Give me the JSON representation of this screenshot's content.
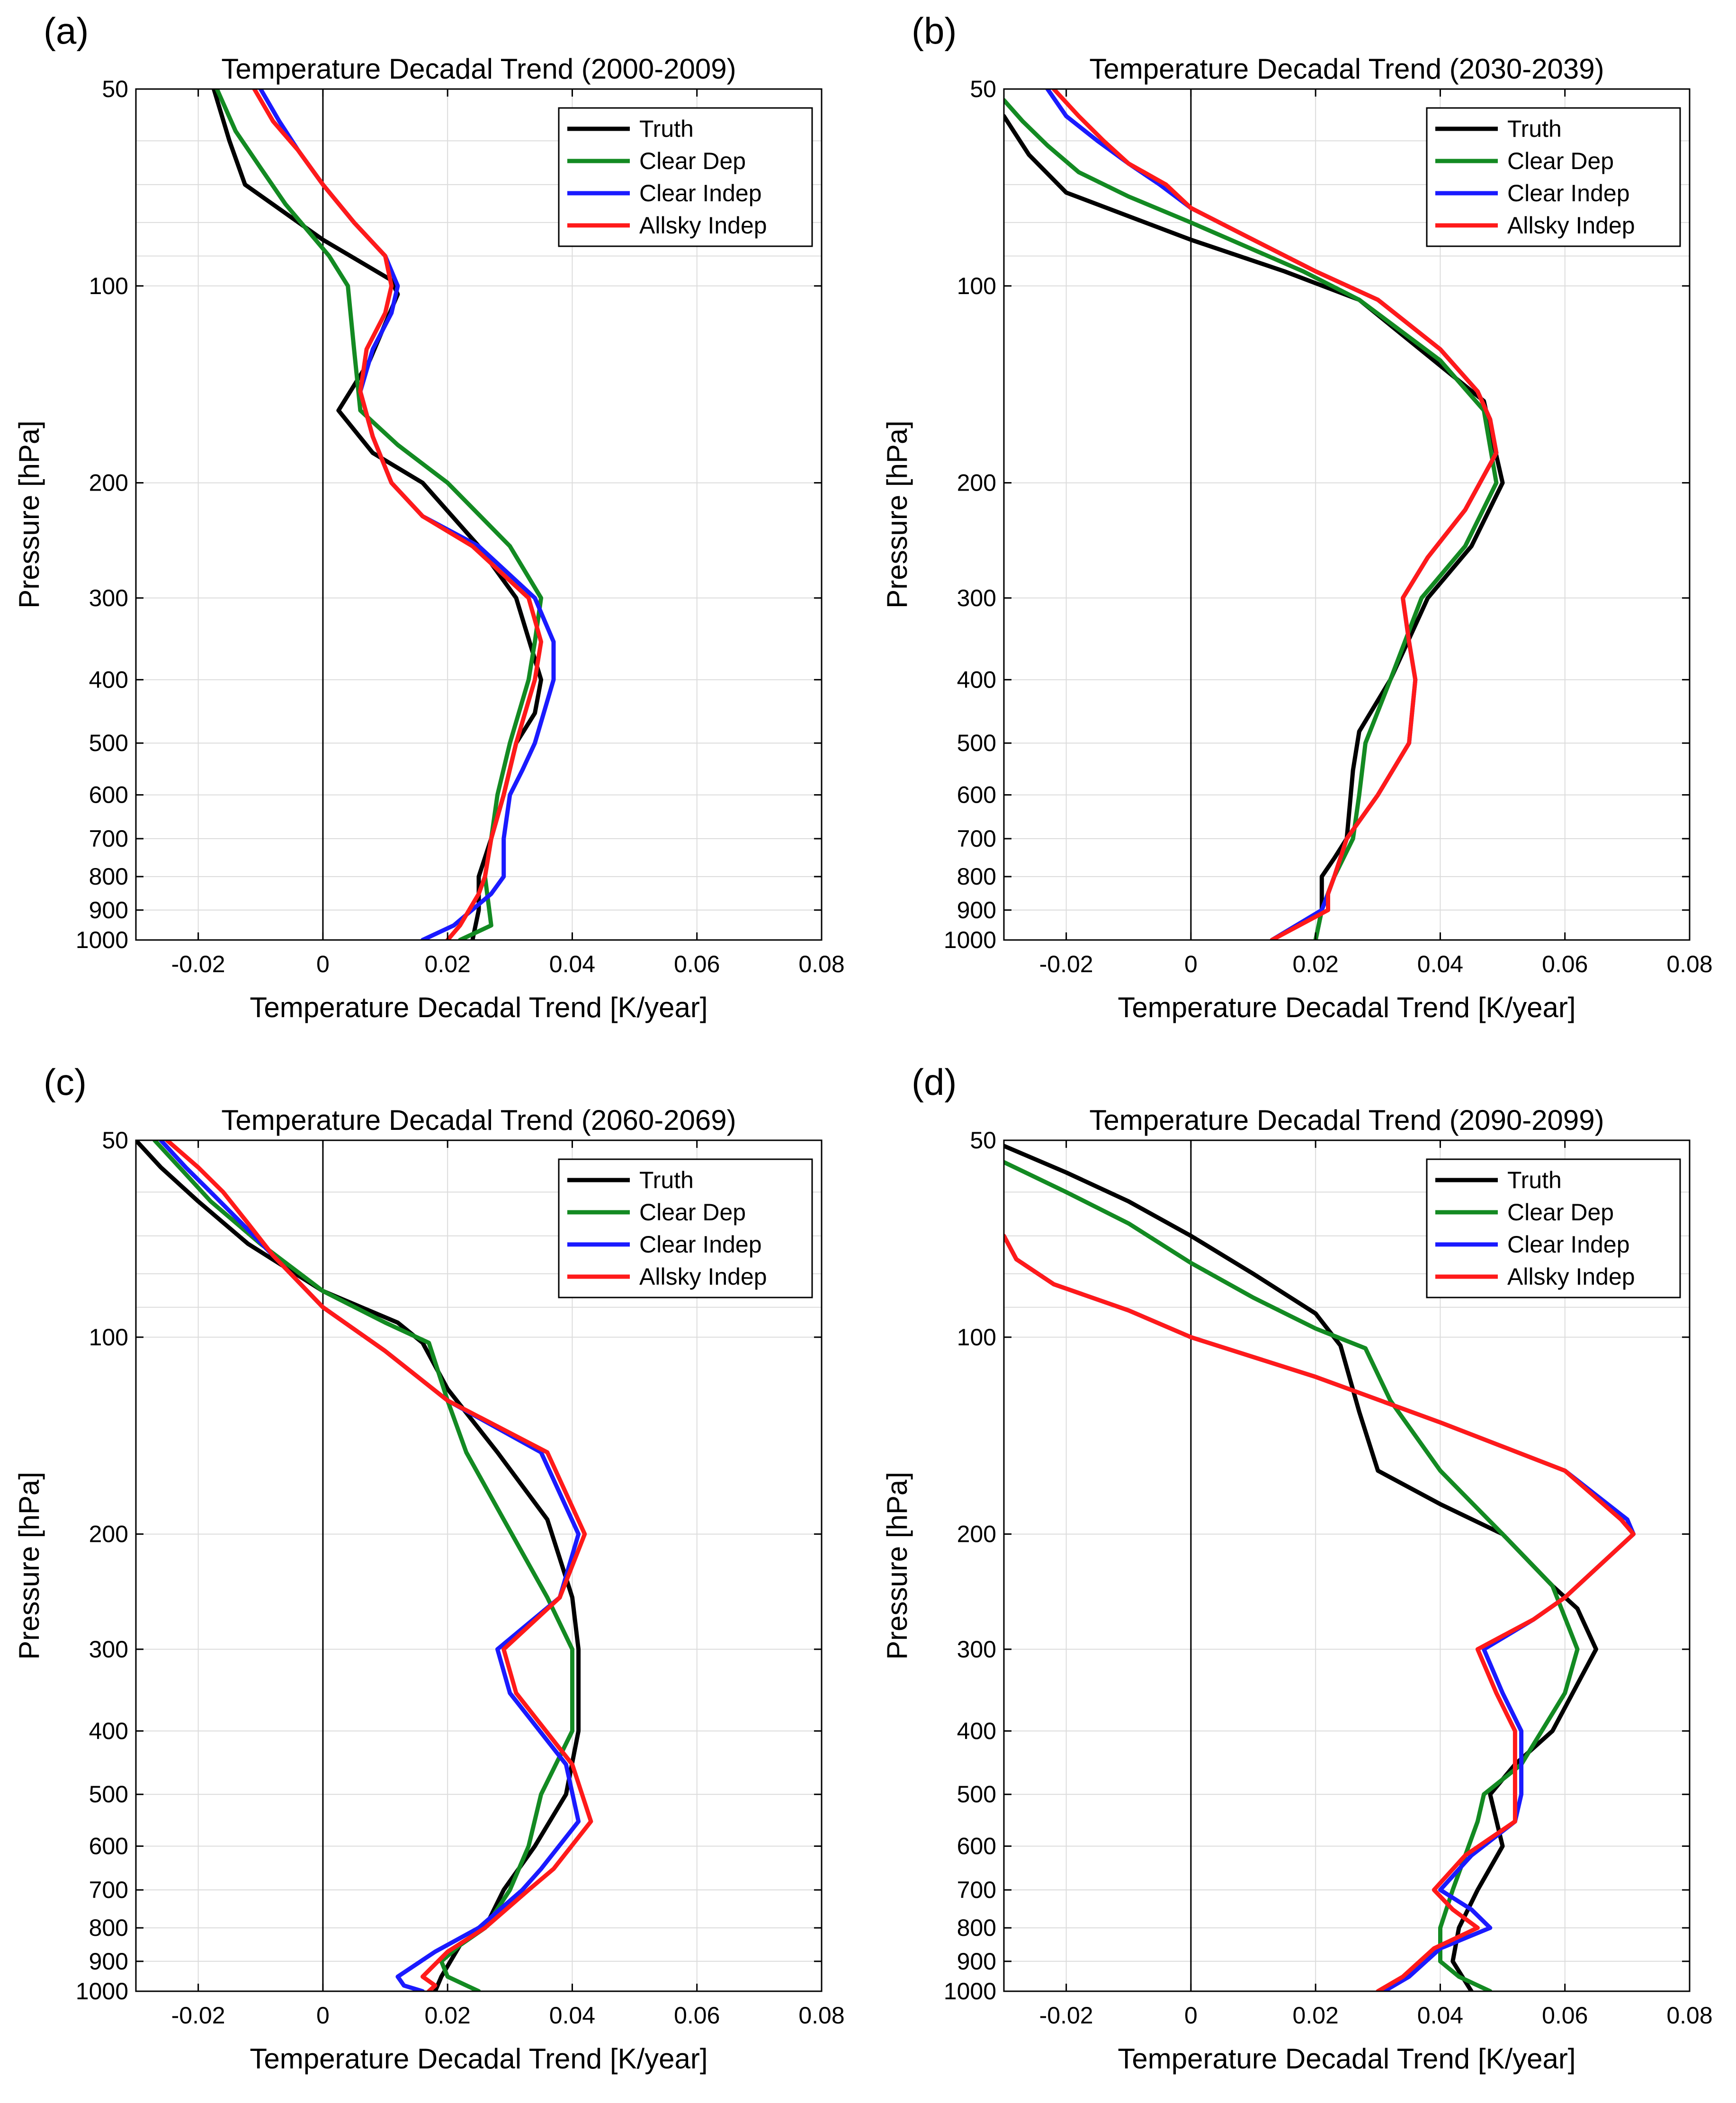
{
  "colors": {
    "truth": "#000000",
    "clear_dep": "#138a22",
    "clear_indep": "#1a1aff",
    "allsky_indep": "#ff1a1a"
  },
  "chart_data": [
    {
      "panel_label": "(a)",
      "type": "line",
      "title": "Temperature Decadal Trend (2000-2009)",
      "xlabel": "Temperature Decadal Trend [K/year]",
      "ylabel": "Pressure [hPa]",
      "xlim": [
        -0.03,
        0.08
      ],
      "ylim": [
        1000,
        50
      ],
      "yscale": "log",
      "y_reversed": true,
      "grid": true,
      "legend_position": "top-right",
      "x_ticks": [
        "-0.02",
        "0",
        "0.02",
        "0.04",
        "0.06",
        "0.08"
      ],
      "x_tick_values": [
        -0.02,
        0,
        0.02,
        0.04,
        0.06,
        0.08
      ],
      "y_ticks": [
        "50",
        "100",
        "200",
        "300",
        "400",
        "500",
        "600",
        "700",
        "800",
        "900",
        "1000"
      ],
      "y_tick_values": [
        50,
        100,
        200,
        300,
        400,
        500,
        600,
        700,
        800,
        900,
        1000
      ],
      "series": [
        {
          "name": "Truth",
          "color": "#000000",
          "x": [
            -0.0175,
            -0.015,
            -0.0125,
            0.0,
            0.011,
            0.012,
            0.0075,
            0.0025,
            0.008,
            0.016,
            0.025,
            0.031,
            0.035,
            0.034,
            0.031,
            0.029,
            0.027,
            0.025,
            0.025,
            0.024
          ],
          "p": [
            50,
            60,
            70,
            85,
            98,
            103,
            130,
            155,
            180,
            200,
            250,
            300,
            400,
            450,
            500,
            600,
            700,
            800,
            900,
            1000
          ]
        },
        {
          "name": "Clear Dep",
          "color": "#138a22",
          "x": [
            -0.017,
            -0.014,
            -0.01,
            -0.006,
            0.001,
            0.004,
            0.005,
            0.006,
            0.012,
            0.02,
            0.03,
            0.035,
            0.034,
            0.033,
            0.03,
            0.028,
            0.027,
            0.026,
            0.027,
            0.022
          ],
          "p": [
            50,
            58,
            66,
            75,
            90,
            100,
            125,
            155,
            175,
            200,
            250,
            300,
            350,
            400,
            500,
            600,
            700,
            800,
            950,
            1000
          ]
        },
        {
          "name": "Clear Indep",
          "color": "#1a1aff",
          "x": [
            -0.01,
            -0.007,
            -0.004,
            0.0,
            0.005,
            0.01,
            0.012,
            0.011,
            0.008,
            0.006,
            0.008,
            0.011,
            0.016,
            0.025,
            0.034,
            0.037,
            0.037,
            0.034,
            0.032,
            0.03,
            0.029,
            0.029,
            0.027,
            0.021,
            0.016
          ],
          "p": [
            50,
            56,
            62,
            70,
            80,
            90,
            100,
            110,
            125,
            145,
            170,
            200,
            225,
            250,
            300,
            350,
            400,
            500,
            550,
            600,
            700,
            800,
            850,
            950,
            1000
          ]
        },
        {
          "name": "Allsky Indep",
          "color": "#ff1a1a",
          "x": [
            -0.011,
            -0.008,
            -0.004,
            0.0,
            0.005,
            0.01,
            0.011,
            0.01,
            0.007,
            0.006,
            0.008,
            0.011,
            0.016,
            0.024,
            0.033,
            0.035,
            0.034,
            0.031,
            0.029,
            0.027,
            0.026,
            0.025,
            0.022,
            0.02
          ],
          "p": [
            50,
            56,
            62,
            70,
            80,
            90,
            100,
            110,
            125,
            145,
            170,
            200,
            225,
            250,
            300,
            350,
            400,
            500,
            600,
            700,
            800,
            850,
            950,
            1000
          ]
        }
      ]
    },
    {
      "panel_label": "(b)",
      "type": "line",
      "title": "Temperature Decadal Trend (2030-2039)",
      "xlabel": "Temperature Decadal Trend [K/year]",
      "ylabel": "Pressure [hPa]",
      "xlim": [
        -0.03,
        0.08
      ],
      "ylim": [
        1000,
        50
      ],
      "yscale": "log",
      "y_reversed": true,
      "grid": true,
      "legend_position": "top-right",
      "x_ticks": [
        "-0.02",
        "0",
        "0.02",
        "0.04",
        "0.06",
        "0.08"
      ],
      "x_tick_values": [
        -0.02,
        0,
        0.02,
        0.04,
        0.06,
        0.08
      ],
      "y_ticks": [
        "50",
        "100",
        "200",
        "300",
        "400",
        "500",
        "600",
        "700",
        "800",
        "900",
        "1000"
      ],
      "y_tick_values": [
        50,
        100,
        200,
        300,
        400,
        500,
        600,
        700,
        800,
        900,
        1000
      ],
      "series": [
        {
          "name": "Truth",
          "color": "#000000",
          "x": [
            -0.03,
            -0.026,
            -0.02,
            0.0,
            0.015,
            0.027,
            0.047,
            0.05,
            0.045,
            0.038,
            0.032,
            0.027,
            0.026,
            0.025,
            0.023,
            0.021,
            0.021,
            0.02
          ],
          "p": [
            55,
            63,
            72,
            85,
            95,
            105,
            150,
            200,
            250,
            300,
            400,
            480,
            550,
            700,
            750,
            800,
            900,
            1000
          ]
        },
        {
          "name": "Clear Dep",
          "color": "#138a22",
          "x": [
            -0.03,
            -0.027,
            -0.023,
            -0.018,
            -0.01,
            0.0,
            0.01,
            0.018,
            0.027,
            0.04,
            0.047,
            0.049,
            0.044,
            0.037,
            0.032,
            0.028,
            0.027,
            0.026,
            0.023,
            0.021,
            0.02
          ],
          "p": [
            52,
            56,
            61,
            67,
            73,
            80,
            88,
            95,
            105,
            130,
            155,
            200,
            250,
            300,
            400,
            500,
            600,
            700,
            800,
            900,
            1000
          ]
        },
        {
          "name": "Clear Indep",
          "color": "#1a1aff",
          "x": [
            -0.023,
            -0.02,
            -0.015,
            -0.01,
            -0.005,
            0.0,
            0.01,
            0.02,
            0.03,
            0.04,
            0.046,
            0.048,
            0.049,
            0.044,
            0.038,
            0.034,
            0.035,
            0.036,
            0.035,
            0.03,
            0.025,
            0.023,
            0.022,
            0.021,
            0.013
          ],
          "p": [
            50,
            55,
            60,
            65,
            70,
            76,
            85,
            95,
            105,
            125,
            145,
            160,
            180,
            220,
            260,
            300,
            350,
            400,
            500,
            600,
            700,
            800,
            850,
            900,
            1000
          ]
        },
        {
          "name": "Allsky Indep",
          "color": "#ff1a1a",
          "x": [
            -0.022,
            -0.018,
            -0.014,
            -0.01,
            -0.004,
            0.0,
            0.01,
            0.02,
            0.03,
            0.04,
            0.046,
            0.048,
            0.049,
            0.044,
            0.038,
            0.034,
            0.035,
            0.036,
            0.035,
            0.03,
            0.025,
            0.023,
            0.022,
            0.022,
            0.013
          ],
          "p": [
            50,
            55,
            60,
            65,
            70,
            76,
            85,
            95,
            105,
            125,
            145,
            160,
            180,
            220,
            260,
            300,
            350,
            400,
            500,
            600,
            700,
            800,
            850,
            900,
            1000
          ]
        }
      ]
    },
    {
      "panel_label": "(c)",
      "type": "line",
      "title": "Temperature Decadal Trend (2060-2069)",
      "xlabel": "Temperature Decadal Trend [K/year]",
      "ylabel": "Pressure [hPa]",
      "xlim": [
        -0.03,
        0.08
      ],
      "ylim": [
        1000,
        50
      ],
      "yscale": "log",
      "y_reversed": true,
      "grid": true,
      "legend_position": "top-right",
      "x_ticks": [
        "-0.02",
        "0",
        "0.02",
        "0.04",
        "0.06",
        "0.08"
      ],
      "x_tick_values": [
        -0.02,
        0,
        0.02,
        0.04,
        0.06,
        0.08
      ],
      "y_ticks": [
        "50",
        "100",
        "200",
        "300",
        "400",
        "500",
        "600",
        "700",
        "800",
        "900",
        "1000"
      ],
      "y_tick_values": [
        50,
        100,
        200,
        300,
        400,
        500,
        600,
        700,
        800,
        900,
        1000
      ],
      "series": [
        {
          "name": "Truth",
          "color": "#000000",
          "x": [
            -0.03,
            -0.026,
            -0.02,
            -0.012,
            0.0,
            0.012,
            0.016,
            0.02,
            0.028,
            0.036,
            0.04,
            0.041,
            0.041,
            0.039,
            0.034,
            0.029,
            0.026,
            0.022,
            0.019,
            0.018
          ],
          "p": [
            50,
            55,
            62,
            72,
            85,
            95,
            102,
            120,
            150,
            190,
            250,
            300,
            400,
            500,
            600,
            700,
            800,
            850,
            950,
            1000
          ]
        },
        {
          "name": "Clear Dep",
          "color": "#138a22",
          "x": [
            -0.027,
            -0.023,
            -0.018,
            -0.01,
            0.0,
            0.01,
            0.017,
            0.02,
            0.023,
            0.029,
            0.036,
            0.04,
            0.04,
            0.035,
            0.033,
            0.03,
            0.026,
            0.022,
            0.019,
            0.02,
            0.025
          ],
          "p": [
            50,
            55,
            62,
            72,
            85,
            95,
            102,
            125,
            150,
            190,
            250,
            300,
            400,
            500,
            600,
            700,
            800,
            850,
            900,
            950,
            1000
          ]
        },
        {
          "name": "Clear Indep",
          "color": "#1a1aff",
          "x": [
            -0.026,
            -0.022,
            -0.018,
            -0.013,
            -0.008,
            0.0,
            0.01,
            0.02,
            0.035,
            0.041,
            0.038,
            0.028,
            0.03,
            0.039,
            0.041,
            0.035,
            0.032,
            0.025,
            0.018,
            0.012,
            0.013,
            0.016
          ],
          "p": [
            50,
            55,
            60,
            67,
            75,
            90,
            105,
            125,
            150,
            200,
            250,
            300,
            350,
            450,
            550,
            650,
            700,
            800,
            870,
            950,
            980,
            1000
          ]
        },
        {
          "name": "Allsky Indep",
          "color": "#ff1a1a",
          "x": [
            -0.025,
            -0.02,
            -0.016,
            -0.012,
            -0.008,
            0.0,
            0.01,
            0.02,
            0.036,
            0.042,
            0.038,
            0.029,
            0.031,
            0.04,
            0.043,
            0.037,
            0.033,
            0.026,
            0.02,
            0.016,
            0.018,
            0.017
          ],
          "p": [
            50,
            55,
            60,
            67,
            75,
            90,
            105,
            125,
            150,
            200,
            250,
            300,
            350,
            450,
            550,
            650,
            700,
            800,
            870,
            950,
            980,
            1000
          ]
        }
      ]
    },
    {
      "panel_label": "(d)",
      "type": "line",
      "title": "Temperature Decadal Trend (2090-2099)",
      "xlabel": "Temperature Decadal Trend [K/year]",
      "ylabel": "Pressure [hPa]",
      "xlim": [
        -0.03,
        0.08
      ],
      "ylim": [
        1000,
        50
      ],
      "yscale": "log",
      "y_reversed": true,
      "grid": true,
      "legend_position": "top-right",
      "x_ticks": [
        "-0.02",
        "0",
        "0.02",
        "0.04",
        "0.06",
        "0.08"
      ],
      "x_tick_values": [
        -0.02,
        0,
        0.02,
        0.04,
        0.06,
        0.08
      ],
      "y_ticks": [
        "50",
        "100",
        "200",
        "300",
        "400",
        "500",
        "600",
        "700",
        "800",
        "900",
        "1000"
      ],
      "y_tick_values": [
        50,
        100,
        200,
        300,
        400,
        500,
        600,
        700,
        800,
        900,
        1000
      ],
      "series": [
        {
          "name": "Truth",
          "color": "#000000",
          "x": [
            -0.03,
            -0.02,
            -0.01,
            0.0,
            0.01,
            0.02,
            0.024,
            0.027,
            0.03,
            0.04,
            0.05,
            0.058,
            0.062,
            0.065,
            0.058,
            0.052,
            0.048,
            0.05,
            0.046,
            0.043,
            0.042,
            0.045
          ],
          "p": [
            51,
            56,
            62,
            70,
            80,
            92,
            103,
            130,
            160,
            180,
            200,
            240,
            260,
            300,
            400,
            450,
            500,
            600,
            700,
            800,
            900,
            1000
          ]
        },
        {
          "name": "Clear Dep",
          "color": "#138a22",
          "x": [
            -0.03,
            -0.02,
            -0.01,
            0.0,
            0.01,
            0.02,
            0.028,
            0.032,
            0.04,
            0.05,
            0.058,
            0.062,
            0.06,
            0.053,
            0.047,
            0.046,
            0.042,
            0.04,
            0.04,
            0.043,
            0.048
          ],
          "p": [
            54,
            60,
            67,
            77,
            87,
            97,
            104,
            125,
            160,
            200,
            240,
            300,
            350,
            450,
            500,
            550,
            700,
            800,
            900,
            950,
            1000
          ]
        },
        {
          "name": "Clear Indep",
          "color": "#1a1aff",
          "x": [
            -0.03,
            -0.028,
            -0.022,
            -0.01,
            0.0,
            0.02,
            0.04,
            0.06,
            0.07,
            0.071,
            0.06,
            0.055,
            0.047,
            0.05,
            0.053,
            0.053,
            0.052,
            0.045,
            0.04,
            0.045,
            0.048,
            0.04,
            0.035,
            0.031
          ],
          "p": [
            70,
            76,
            83,
            91,
            100,
            115,
            135,
            160,
            190,
            200,
            250,
            270,
            300,
            350,
            400,
            500,
            550,
            620,
            700,
            750,
            800,
            860,
            950,
            1000
          ]
        },
        {
          "name": "Allsky Indep",
          "color": "#ff1a1a",
          "x": [
            -0.03,
            -0.028,
            -0.022,
            -0.01,
            0.0,
            0.02,
            0.04,
            0.06,
            0.069,
            0.071,
            0.06,
            0.055,
            0.046,
            0.049,
            0.052,
            0.052,
            0.052,
            0.044,
            0.039,
            0.042,
            0.046,
            0.039,
            0.034,
            0.03
          ],
          "p": [
            70,
            76,
            83,
            91,
            100,
            115,
            135,
            160,
            190,
            200,
            250,
            270,
            300,
            350,
            400,
            500,
            550,
            620,
            700,
            750,
            800,
            860,
            950,
            1000
          ]
        }
      ]
    }
  ]
}
